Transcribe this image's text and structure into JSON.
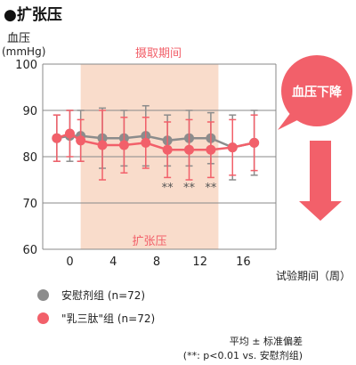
{
  "title": "●扩张压",
  "chart_data": {
    "type": "line",
    "ylabel": "血压\n(mmHg)",
    "xlabel": "试验期间（周）",
    "ylim": [
      60,
      100
    ],
    "xlim": [
      -2.5,
      19
    ],
    "yticks": [
      60,
      70,
      80,
      90,
      100
    ],
    "xticks": [
      0,
      4,
      8,
      12,
      16
    ],
    "grid": true,
    "shaded_period": {
      "from": 1,
      "to": 13.7,
      "label": "摄取期间",
      "color": "#f9dccb"
    },
    "inside_label": "扩张压",
    "callout": "血压下降",
    "series": [
      {
        "name": "安慰剂组 (n=72)",
        "color": "#8c8c8c",
        "x": [
          -1.2,
          0,
          1,
          3,
          5,
          7,
          9,
          11,
          13,
          15,
          17
        ],
        "values": [
          84,
          84.5,
          84.5,
          84,
          84,
          84.5,
          83.5,
          84,
          84,
          82,
          83
        ],
        "err": [
          5,
          5.5,
          5.5,
          6.5,
          6,
          6.5,
          5.5,
          6,
          5.5,
          7,
          7
        ]
      },
      {
        "name": "\"乳三肽\"组 (n=72)",
        "color": "#f2606a",
        "x": [
          -1.2,
          0,
          1,
          3,
          5,
          7,
          9,
          11,
          13,
          15,
          17
        ],
        "values": [
          84,
          85,
          83.5,
          82.5,
          82.5,
          83,
          81.5,
          81.5,
          81.5,
          82,
          83
        ],
        "err": [
          5,
          5,
          4.5,
          7.5,
          6,
          5.5,
          6,
          6.5,
          6,
          6,
          6
        ]
      }
    ],
    "significance": {
      "x": [
        9,
        11,
        13
      ],
      "label": "**"
    }
  },
  "note": {
    "line1": "平均 ± 标准偏差",
    "line2": "(**: p<0.01 vs. 安慰剂组)"
  }
}
